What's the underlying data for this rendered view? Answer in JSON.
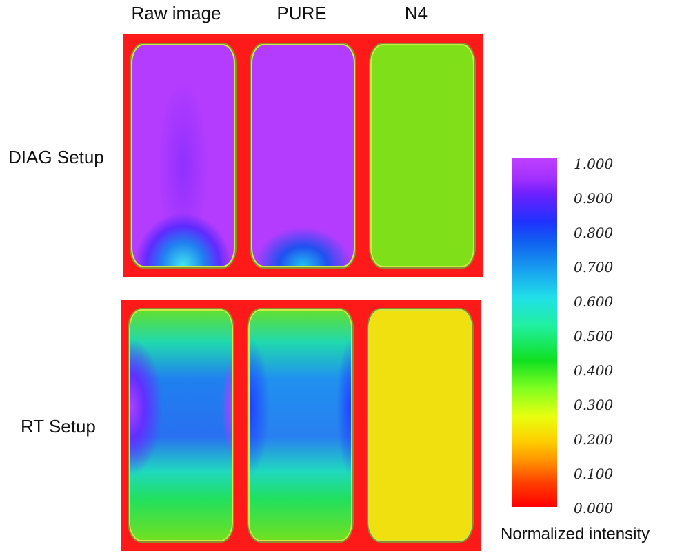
{
  "columns": [
    "Raw image",
    "PURE",
    "N4"
  ],
  "rows": [
    "DIAG Setup",
    "RT Setup"
  ],
  "colorbar": {
    "label": "Normalized intensity",
    "ticks": [
      "1.000",
      "0.900",
      "0.800",
      "0.700",
      "0.600",
      "0.500",
      "0.400",
      "0.300",
      "0.200",
      "0.100",
      "0.000"
    ]
  },
  "colors": {
    "background": "#ff1a1a",
    "uniform_n4_diag": "#7fe019",
    "uniform_n4_rt": "#f0e010"
  }
}
